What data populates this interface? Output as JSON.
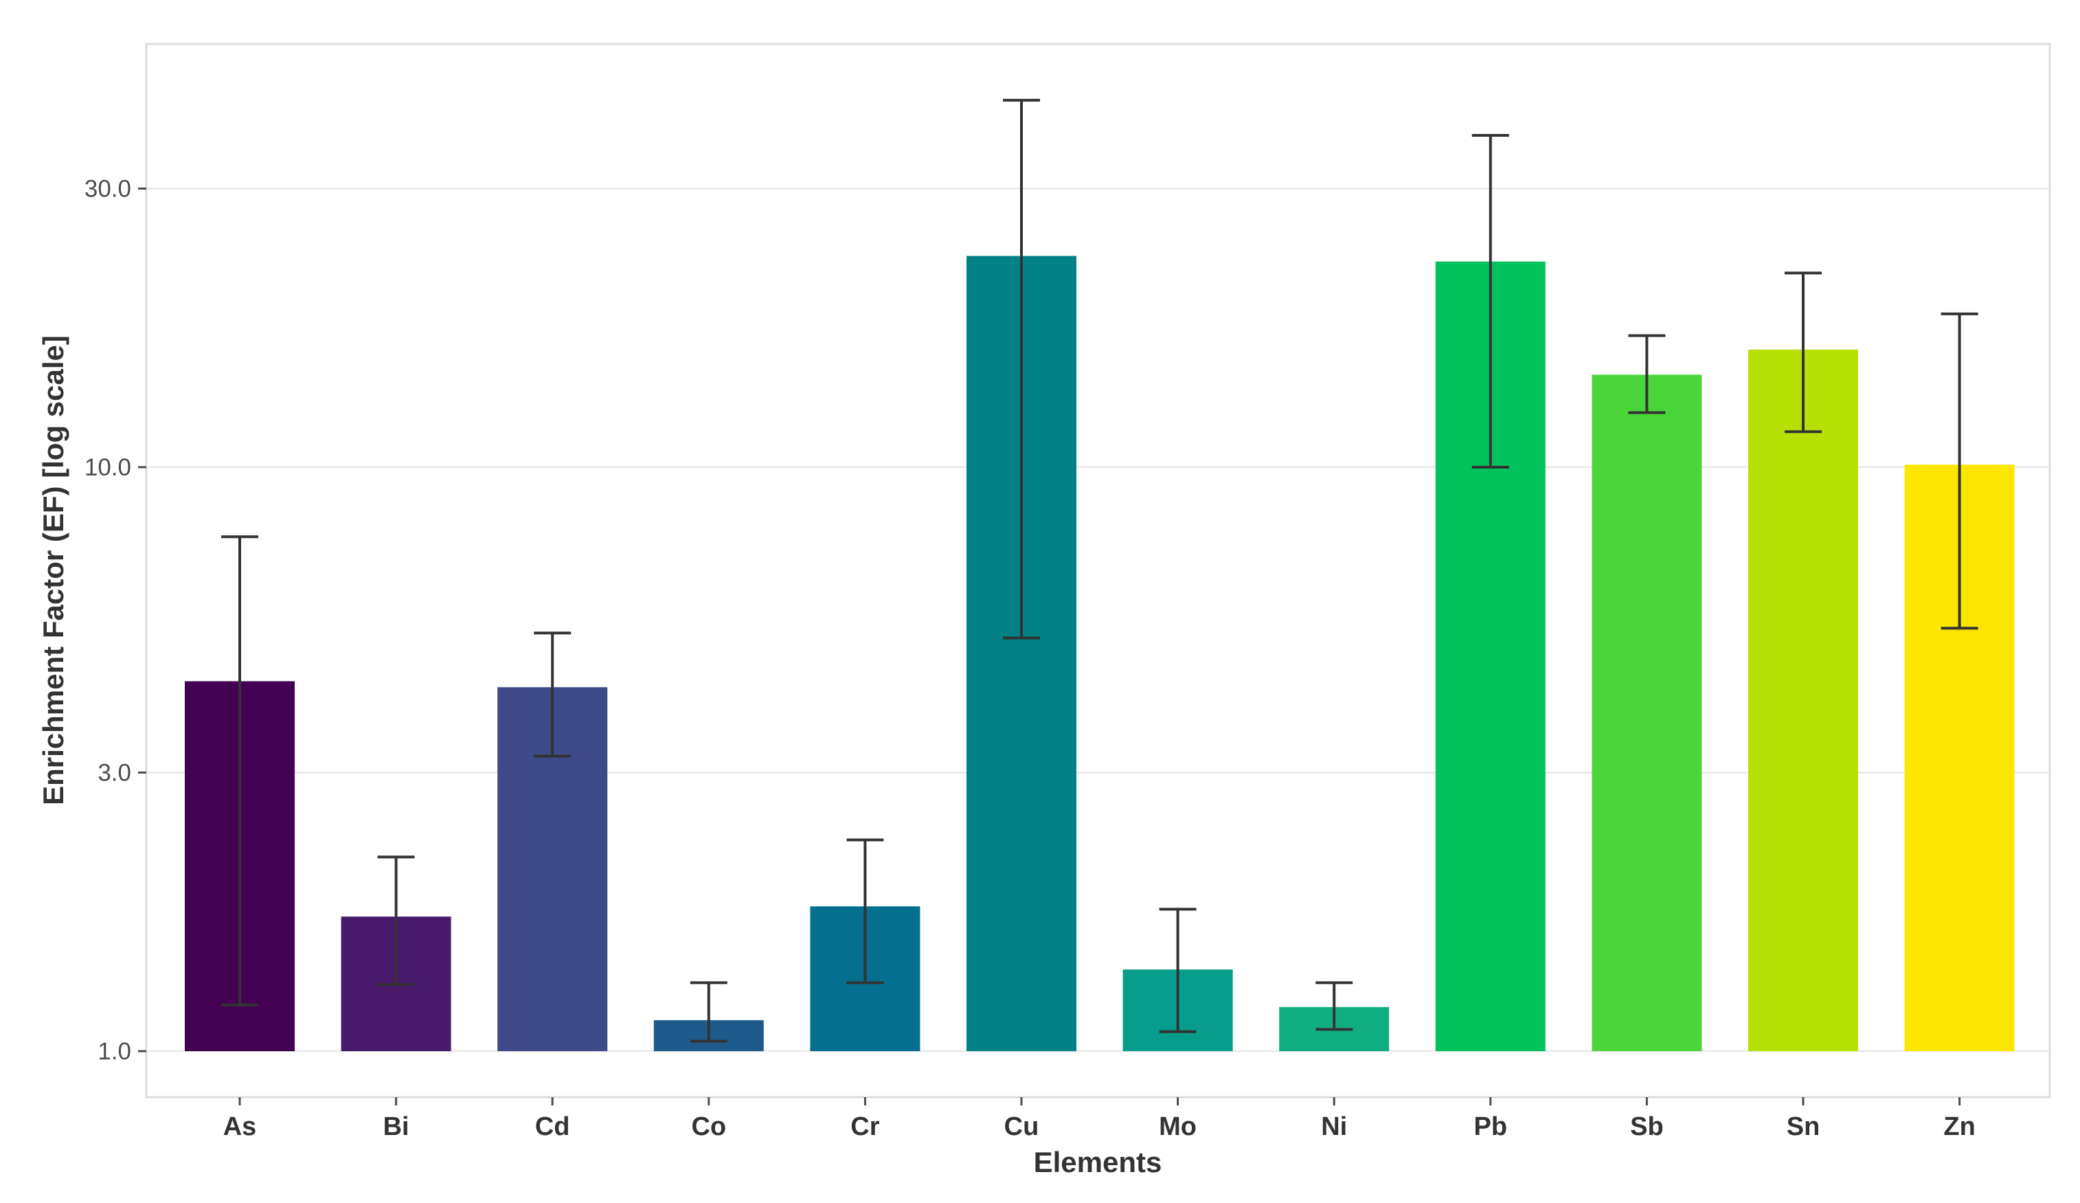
{
  "chart_data": {
    "type": "bar",
    "title": "",
    "xlabel": "Elements",
    "ylabel": "Enrichment Factor (EF) [log scale]",
    "y_scale": "log10",
    "ylim": [
      0.93,
      50
    ],
    "yticks": [
      1.0,
      3.0,
      10.0,
      30.0
    ],
    "ytick_labels": [
      "1.0",
      "3.0",
      "10.0",
      "30.0"
    ],
    "grid": "horizontal major",
    "legend": "none",
    "categories": [
      "As",
      "Bi",
      "Cd",
      "Co",
      "Cr",
      "Cu",
      "Mo",
      "Ni",
      "Pb",
      "Sb",
      "Sn",
      "Zn"
    ],
    "values": [
      4.3,
      1.7,
      4.2,
      1.13,
      1.77,
      23.0,
      1.38,
      1.19,
      22.5,
      14.4,
      15.9,
      10.1
    ],
    "error_low": [
      1.2,
      1.3,
      3.2,
      1.04,
      1.31,
      5.1,
      1.08,
      1.09,
      10.0,
      12.4,
      11.5,
      5.3
    ],
    "error_high": [
      7.6,
      2.15,
      5.2,
      1.31,
      2.3,
      42.5,
      1.75,
      1.31,
      37.0,
      16.8,
      21.5,
      18.3
    ],
    "colors": [
      "#440154",
      "#481a6c",
      "#3e4a89",
      "#1f5a8c",
      "#046f8e",
      "#028186",
      "#079d8d",
      "#11ae82",
      "#00c35e",
      "#4ad63a",
      "#b6e004",
      "#fde600"
    ]
  }
}
